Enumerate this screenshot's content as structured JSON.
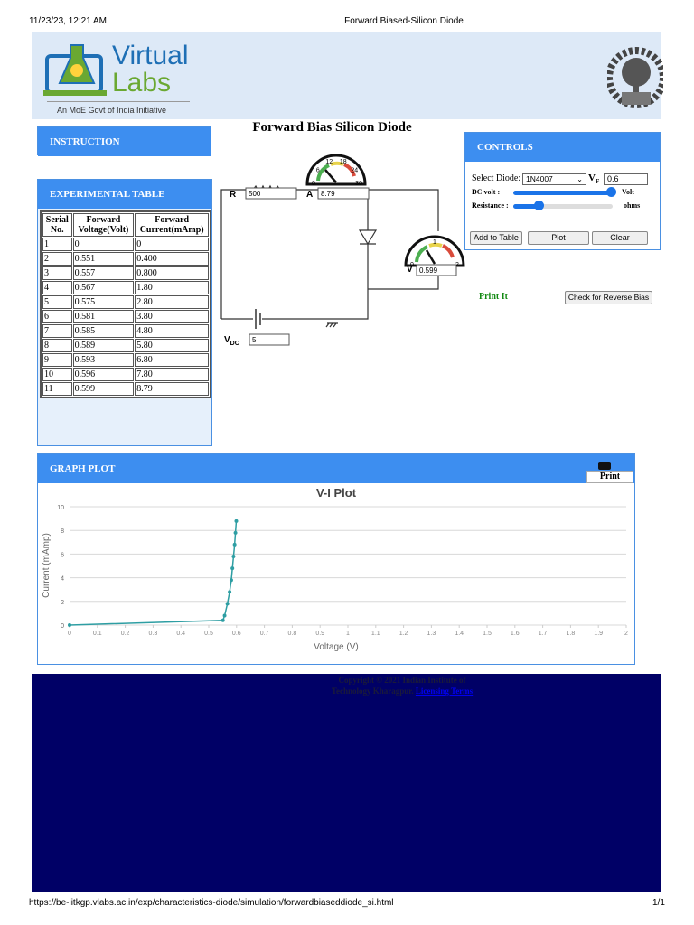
{
  "print_header": {
    "date": "11/23/23, 12:21 AM",
    "title": "Forward Biased-Silicon Diode"
  },
  "print_footer": {
    "url": "https://be-iitkgp.vlabs.ac.in/exp/characteristics-diode/simulation/forwardbiaseddiode_si.html",
    "page": "1/1"
  },
  "header": {
    "logo_top": "Virtual",
    "logo_bottom": "Labs",
    "tagline": "An MoE Govt of India Initiative"
  },
  "instruction": {
    "title": "INSTRUCTION"
  },
  "simulation": {
    "title": "Forward Bias Silicon Diode",
    "r_label": "R",
    "r_value": "500",
    "a_label": "A",
    "a_value": "8.79",
    "v_label": "V",
    "v_value": "0.599",
    "vdc_label": "V",
    "vdc_sub": "DC",
    "vdc_value": "5",
    "ammeter_scale": [
      "0",
      "6",
      "12",
      "18",
      "24",
      "30"
    ],
    "voltmeter_scale": [
      "0",
      "1",
      "2"
    ],
    "print_it": "Print It",
    "reverse_button": "Check for Reverse Bias"
  },
  "controls": {
    "title": "CONTROLS",
    "select_label": "Select Diode:",
    "select_value": "1N4007",
    "vf_label": "V",
    "vf_sub": "F",
    "vf_value": "0.6",
    "dc_label": "DC volt :",
    "dc_unit": "Volt",
    "res_label": "Resistance :",
    "res_unit": "ohms",
    "buttons": [
      "Add to Table",
      "Plot",
      "Clear"
    ]
  },
  "table": {
    "title": "EXPERIMENTAL TABLE",
    "headers": [
      "Serial No.",
      "Forward Voltage(Volt)",
      "Forward Current(mAmp)"
    ],
    "rows": [
      [
        "1",
        "0",
        "0"
      ],
      [
        "2",
        "0.551",
        "0.400"
      ],
      [
        "3",
        "0.557",
        "0.800"
      ],
      [
        "4",
        "0.567",
        "1.80"
      ],
      [
        "5",
        "0.575",
        "2.80"
      ],
      [
        "6",
        "0.581",
        "3.80"
      ],
      [
        "7",
        "0.585",
        "4.80"
      ],
      [
        "8",
        "0.589",
        "5.80"
      ],
      [
        "9",
        "0.593",
        "6.80"
      ],
      [
        "10",
        "0.596",
        "7.80"
      ],
      [
        "11",
        "0.599",
        "8.79"
      ]
    ]
  },
  "graph": {
    "title": "GRAPH PLOT",
    "print": "Print"
  },
  "chart_data": {
    "type": "line",
    "title": "V-I Plot",
    "x_label": "Voltage (V)",
    "y_label": "Current (mAmp)",
    "x": [
      0,
      0.551,
      0.557,
      0.567,
      0.575,
      0.581,
      0.585,
      0.589,
      0.593,
      0.596,
      0.599
    ],
    "values": [
      0,
      0.4,
      0.8,
      1.8,
      2.8,
      3.8,
      4.8,
      5.8,
      6.8,
      7.8,
      8.79
    ],
    "color": "#2e9ea3",
    "xlim": [
      0,
      2
    ],
    "xticks": [
      0,
      0.1,
      0.2,
      0.3,
      0.4,
      0.5,
      0.6,
      0.7,
      0.8,
      0.9,
      1,
      1.1,
      1.2,
      1.3,
      1.4,
      1.5,
      1.6,
      1.7,
      1.8,
      1.9,
      2
    ],
    "ylim": [
      0,
      10
    ],
    "yticks": [
      0,
      2,
      4,
      6,
      8,
      10
    ],
    "grid": true
  },
  "footer": {
    "copyright": "Copyright © 2021 Indian Institute of Technology Kharagpur.",
    "link": "Licensing Terms"
  }
}
